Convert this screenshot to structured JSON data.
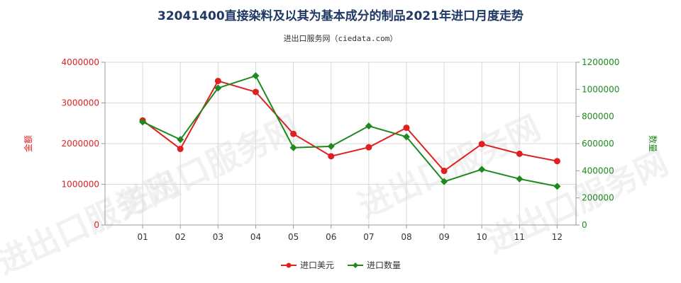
{
  "chart_data": {
    "type": "line",
    "title": "32041400直接染料及以其为基本成分的制品2021年进口月度走势",
    "subtitle": "进出口服务网（ciedata.com）",
    "watermark": "进出口服务网",
    "categories": [
      "01",
      "02",
      "03",
      "04",
      "05",
      "06",
      "07",
      "08",
      "09",
      "10",
      "11",
      "12"
    ],
    "y_left": {
      "label": "金额",
      "range": [
        0,
        4000000
      ],
      "ticks": [
        0,
        1000000,
        2000000,
        3000000,
        4000000
      ],
      "tick_labels": [
        "0",
        "1000000",
        "2000000",
        "3000000",
        "4000000"
      ],
      "color": "#e02020"
    },
    "y_right": {
      "label": "数量",
      "range": [
        0,
        1200000
      ],
      "ticks": [
        0,
        200000,
        400000,
        600000,
        800000,
        1000000,
        1200000
      ],
      "tick_labels": [
        "0",
        "200000",
        "400000",
        "600000",
        "800000",
        "1000000",
        "1200000"
      ],
      "color": "#1e8a1e"
    },
    "series": [
      {
        "name": "进口美元",
        "axis": "left",
        "color": "#e02020",
        "values": [
          2570000,
          1870000,
          3540000,
          3270000,
          2240000,
          1690000,
          1910000,
          2390000,
          1330000,
          1990000,
          1750000,
          1570000
        ]
      },
      {
        "name": "进口数量",
        "axis": "right",
        "color": "#1e8a1e",
        "values": [
          760000,
          630000,
          1010000,
          1100000,
          570000,
          580000,
          730000,
          650000,
          320000,
          410000,
          340000,
          285000
        ]
      }
    ],
    "grid": true,
    "legend": "bottom-center"
  }
}
